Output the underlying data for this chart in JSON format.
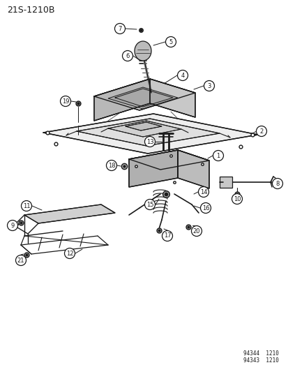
{
  "title": "21S-1210B",
  "bg": "#ffffff",
  "lc": "#1a1a1a",
  "tc": "#1a1a1a",
  "gray1": "#c8c8c8",
  "gray2": "#b0b0b0",
  "gray3": "#d8d8d8",
  "gray4": "#e8e8e8",
  "footer": [
    "94344  1210",
    "94343  1210"
  ],
  "figsize": [
    4.14,
    5.33
  ],
  "dpi": 100
}
